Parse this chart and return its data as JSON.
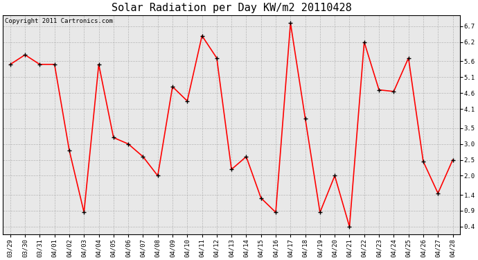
{
  "title": "Solar Radiation per Day KW/m2 20110428",
  "copyright": "Copyright 2011 Cartronics.com",
  "labels": [
    "03/29",
    "03/30",
    "03/31",
    "04/01",
    "04/02",
    "04/03",
    "04/04",
    "04/05",
    "04/06",
    "04/07",
    "04/08",
    "04/09",
    "04/10",
    "04/11",
    "04/12",
    "04/13",
    "04/14",
    "04/15",
    "04/16",
    "04/17",
    "04/18",
    "04/19",
    "04/20",
    "04/21",
    "04/22",
    "04/23",
    "04/24",
    "04/25",
    "04/26",
    "04/27",
    "04/28"
  ],
  "values": [
    5.5,
    5.8,
    5.5,
    5.5,
    2.8,
    0.85,
    5.5,
    3.2,
    3.0,
    2.6,
    2.0,
    4.8,
    4.35,
    6.4,
    5.7,
    2.2,
    2.6,
    1.3,
    0.85,
    6.8,
    3.8,
    0.85,
    2.0,
    0.4,
    6.2,
    4.7,
    4.65,
    5.7,
    2.45,
    1.45,
    2.5
  ],
  "line_color": "#ff0000",
  "marker_color": "#000000",
  "bg_color": "#ffffff",
  "plot_bg_color": "#e8e8e8",
  "grid_color": "#aaaaaa",
  "yticks": [
    0.4,
    0.9,
    1.4,
    2.0,
    2.5,
    3.0,
    3.5,
    4.1,
    4.6,
    5.1,
    5.6,
    6.2,
    6.7
  ],
  "ylim": [
    0.15,
    7.05
  ],
  "title_fontsize": 11,
  "tick_fontsize": 6.5,
  "copyright_fontsize": 6.5
}
